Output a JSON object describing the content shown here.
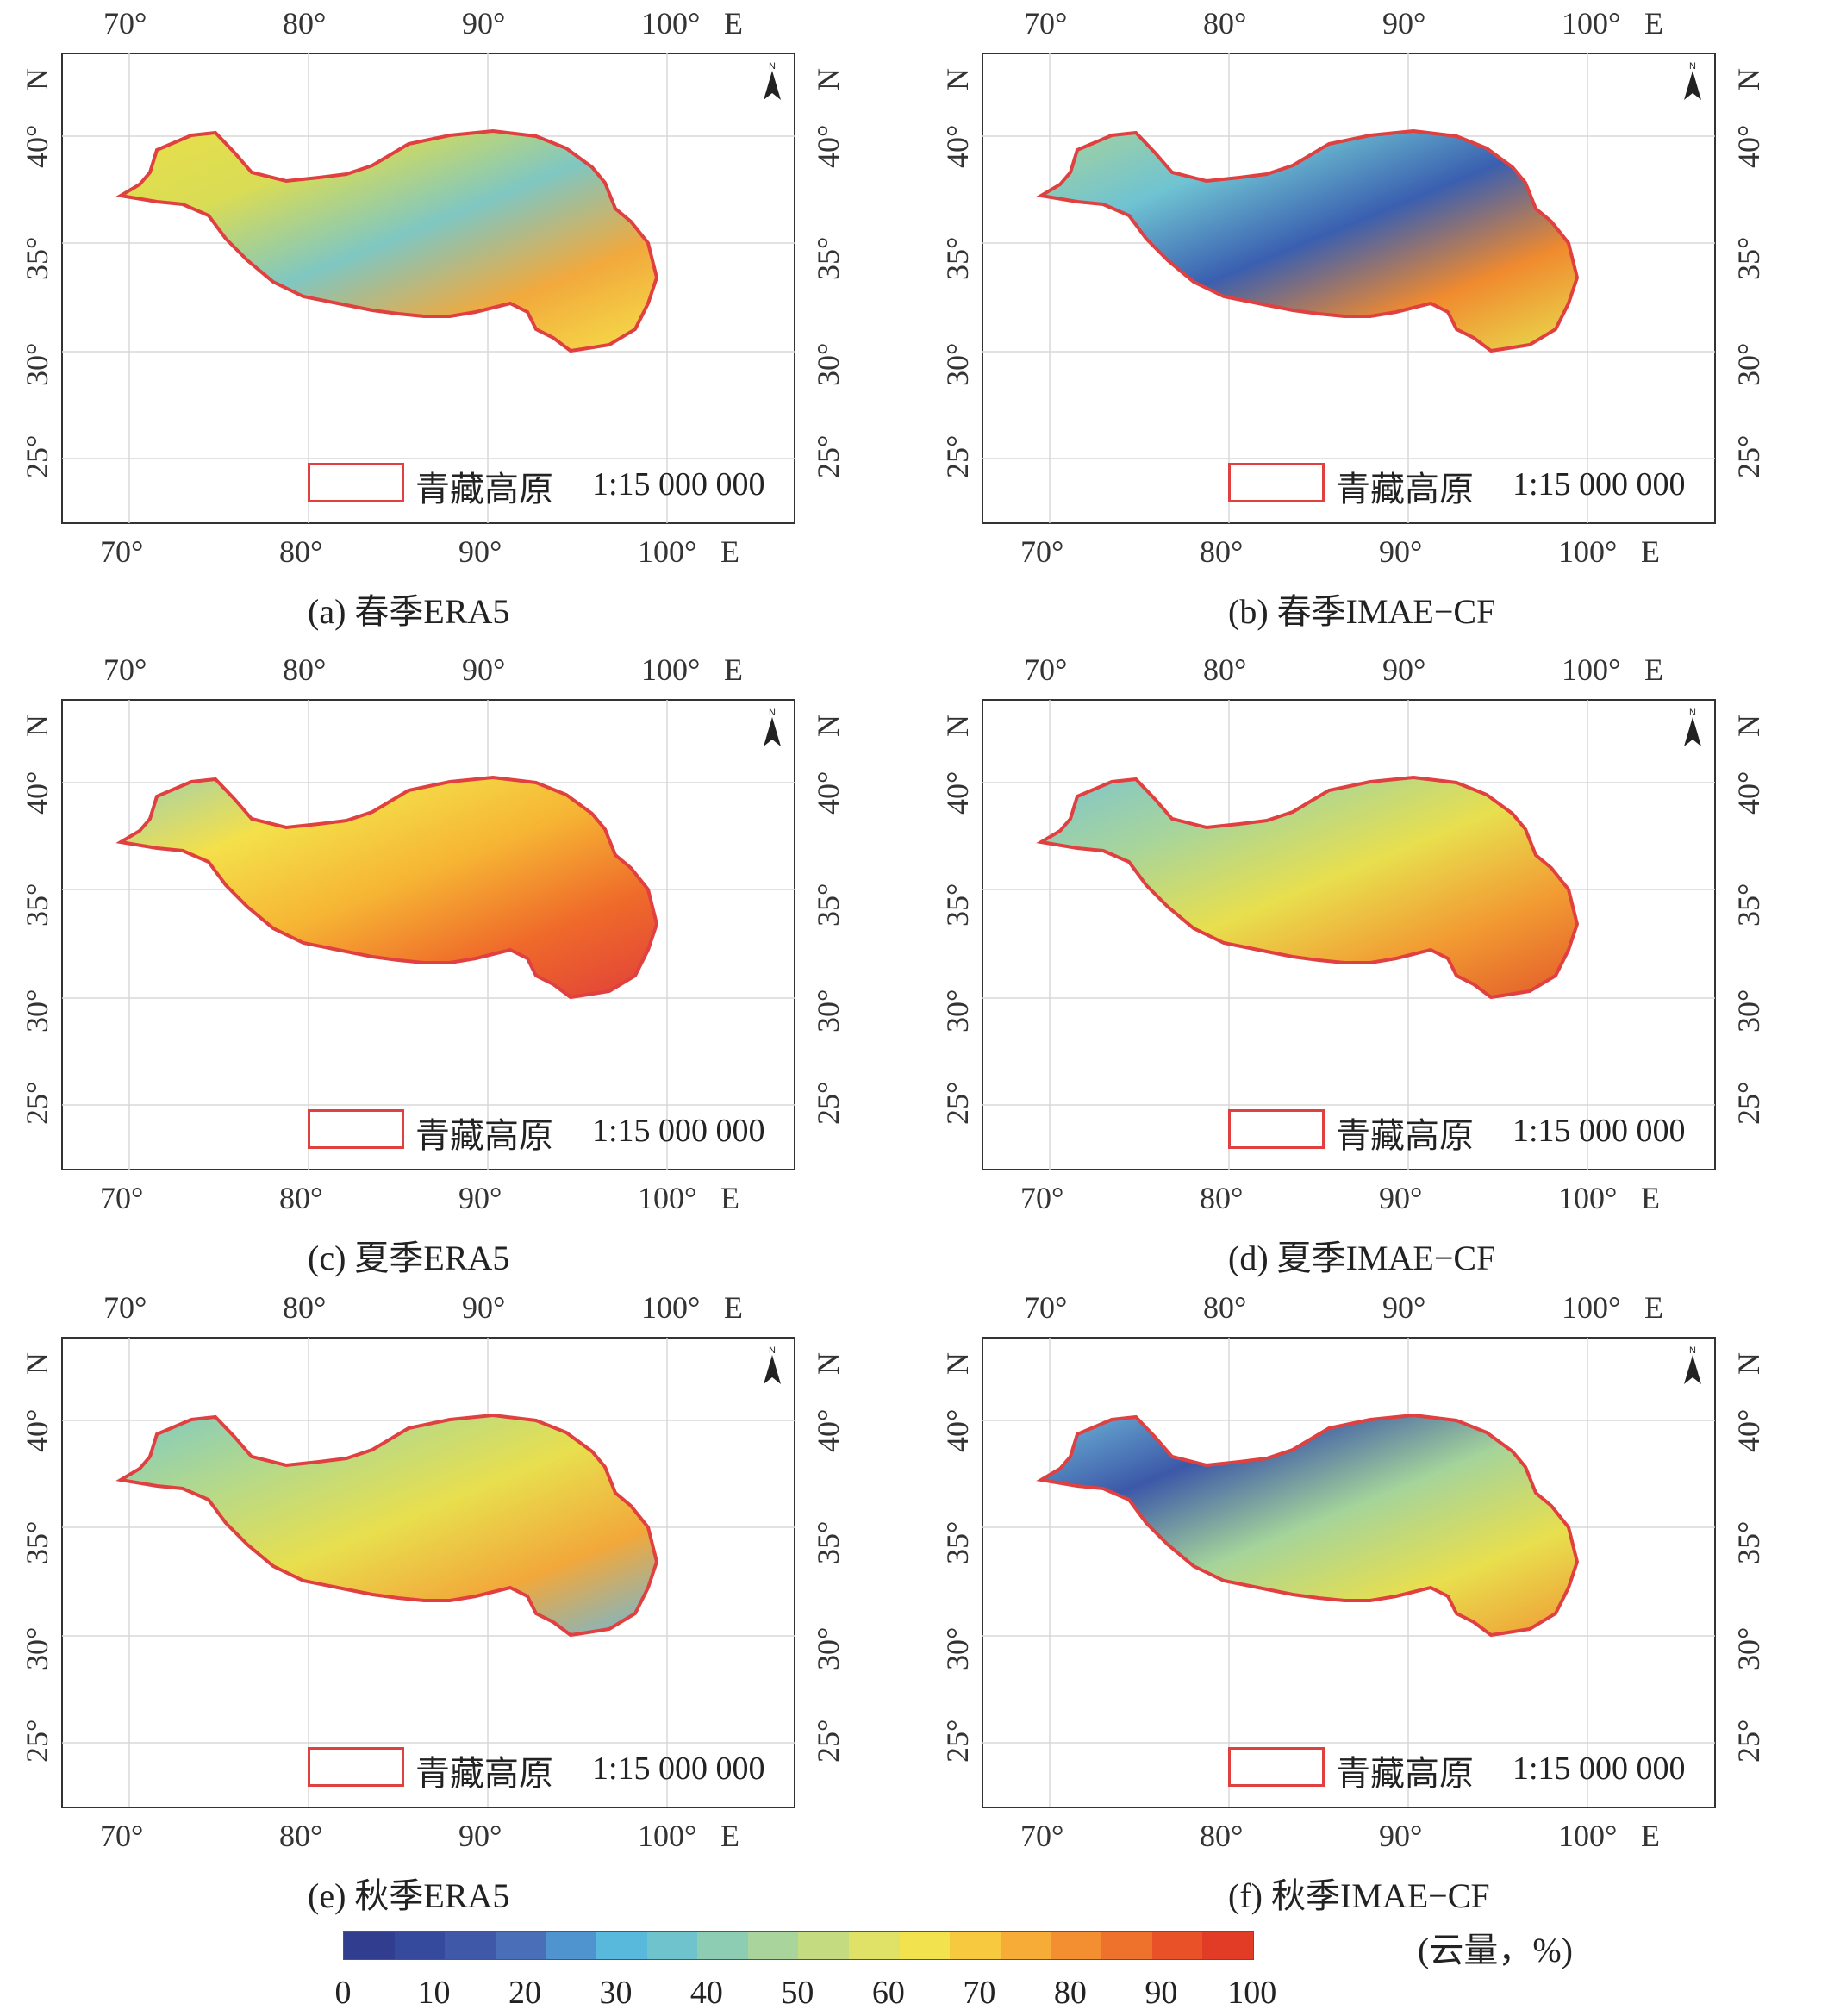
{
  "map_common": {
    "top_lon_labels": [
      "70°",
      "80°",
      "90°",
      "100°",
      "E"
    ],
    "bottom_lon_labels": [
      "70°",
      "80°",
      "90°",
      "100°",
      "E"
    ],
    "left_lat_labels": [
      "N",
      "40°",
      "35°",
      "30°",
      "25°"
    ],
    "right_lat_labels": [
      "N",
      "40°",
      "35°",
      "30°",
      "25°"
    ],
    "legend_label": "青藏高原",
    "scale": "1:15 000 000",
    "north_label": "N",
    "boundary_color": "#e04040"
  },
  "panels": [
    {
      "id": "a",
      "caption": "(a) 春季ERA5",
      "fill_colors": [
        "#e8e04a",
        "#d9dc55",
        "#7fc7c2",
        "#f2a93c",
        "#f5e04a"
      ]
    },
    {
      "id": "b",
      "caption": "(b) 春季IMAE−CF",
      "fill_colors": [
        "#a9d39a",
        "#6fc3d2",
        "#3a5fb0",
        "#f08a2e",
        "#e8df4e"
      ]
    },
    {
      "id": "c",
      "caption": "(c) 夏季ERA5",
      "fill_colors": [
        "#9fd1b0",
        "#f4e04a",
        "#f6b534",
        "#ef6a2a",
        "#e0403a"
      ]
    },
    {
      "id": "d",
      "caption": "(d) 夏季IMAE−CF",
      "fill_colors": [
        "#7ec4cf",
        "#a8d59a",
        "#e8df4e",
        "#f29a32",
        "#e25a2a"
      ]
    },
    {
      "id": "e",
      "caption": "(e) 秋季ERA5",
      "fill_colors": [
        "#7fc9c4",
        "#b4d98b",
        "#e8df4e",
        "#f2a83a",
        "#6fb8d8"
      ]
    },
    {
      "id": "f",
      "caption": "(f) 秋季IMAE−CF",
      "fill_colors": [
        "#6fb8d8",
        "#3c58a8",
        "#a5d49a",
        "#e8df4e",
        "#f09a34"
      ]
    }
  ],
  "colorbar": {
    "colors": [
      "#313d8f",
      "#354a9c",
      "#3f58a8",
      "#4a6fb8",
      "#4f93cf",
      "#58b9dc",
      "#6fc3cc",
      "#8ccdb4",
      "#a9d59c",
      "#c4dc7f",
      "#dfe266",
      "#f2e34e",
      "#f6c93e",
      "#f6ac36",
      "#f38f31",
      "#ef722c",
      "#e95228",
      "#e23c27"
    ],
    "tick_labels": [
      "0",
      "10",
      "20",
      "30",
      "40",
      "50",
      "60",
      "70",
      "80",
      "90",
      "100"
    ],
    "unit": "(云量，%)"
  }
}
